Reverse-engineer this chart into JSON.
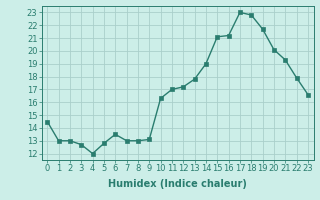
{
  "x": [
    0,
    1,
    2,
    3,
    4,
    5,
    6,
    7,
    8,
    9,
    10,
    11,
    12,
    13,
    14,
    15,
    16,
    17,
    18,
    19,
    20,
    21,
    22,
    23
  ],
  "y": [
    14.5,
    13.0,
    13.0,
    12.7,
    12.0,
    12.8,
    13.5,
    13.0,
    13.0,
    13.1,
    16.3,
    17.0,
    17.2,
    17.8,
    19.0,
    21.1,
    21.2,
    23.0,
    22.8,
    21.7,
    20.1,
    19.3,
    17.9,
    16.6
  ],
  "line_color": "#2a7d6f",
  "marker": "s",
  "marker_size": 2.5,
  "bg_color": "#cceee8",
  "grid_color": "#aacfcb",
  "xlabel": "Humidex (Indice chaleur)",
  "ylabel_ticks": [
    12,
    13,
    14,
    15,
    16,
    17,
    18,
    19,
    20,
    21,
    22,
    23
  ],
  "xlim": [
    -0.5,
    23.5
  ],
  "ylim": [
    11.5,
    23.5
  ],
  "xlabel_fontsize": 7,
  "tick_fontsize": 6,
  "line_width": 1.0
}
